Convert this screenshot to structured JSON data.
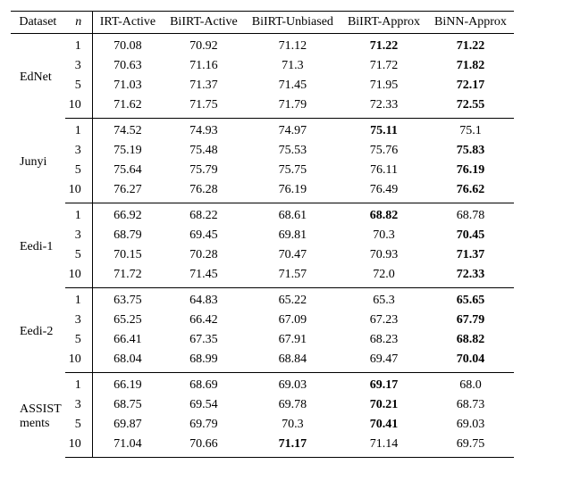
{
  "table": {
    "header": {
      "dataset": "Dataset",
      "n": "n",
      "cols": [
        "IRT-Active",
        "BiIRT-Active",
        "BiIRT-Unbiased",
        "BiIRT-Approx",
        "BiNN-Approx"
      ]
    },
    "groups": [
      {
        "dataset": "EdNet",
        "rows": [
          {
            "n": "1",
            "vals": [
              {
                "v": "70.08",
                "b": false
              },
              {
                "v": "70.92",
                "b": false
              },
              {
                "v": "71.12",
                "b": false
              },
              {
                "v": "71.22",
                "b": true
              },
              {
                "v": "71.22",
                "b": true
              }
            ]
          },
          {
            "n": "3",
            "vals": [
              {
                "v": "70.63",
                "b": false
              },
              {
                "v": "71.16",
                "b": false
              },
              {
                "v": "71.3",
                "b": false
              },
              {
                "v": "71.72",
                "b": false
              },
              {
                "v": "71.82",
                "b": true
              }
            ]
          },
          {
            "n": "5",
            "vals": [
              {
                "v": "71.03",
                "b": false
              },
              {
                "v": "71.37",
                "b": false
              },
              {
                "v": "71.45",
                "b": false
              },
              {
                "v": "71.95",
                "b": false
              },
              {
                "v": "72.17",
                "b": true
              }
            ]
          },
          {
            "n": "10",
            "vals": [
              {
                "v": "71.62",
                "b": false
              },
              {
                "v": "71.75",
                "b": false
              },
              {
                "v": "71.79",
                "b": false
              },
              {
                "v": "72.33",
                "b": false
              },
              {
                "v": "72.55",
                "b": true
              }
            ]
          }
        ]
      },
      {
        "dataset": "Junyi",
        "rows": [
          {
            "n": "1",
            "vals": [
              {
                "v": "74.52",
                "b": false
              },
              {
                "v": "74.93",
                "b": false
              },
              {
                "v": "74.97",
                "b": false
              },
              {
                "v": "75.11",
                "b": true
              },
              {
                "v": "75.1",
                "b": false
              }
            ]
          },
          {
            "n": "3",
            "vals": [
              {
                "v": "75.19",
                "b": false
              },
              {
                "v": "75.48",
                "b": false
              },
              {
                "v": "75.53",
                "b": false
              },
              {
                "v": "75.76",
                "b": false
              },
              {
                "v": "75.83",
                "b": true
              }
            ]
          },
          {
            "n": "5",
            "vals": [
              {
                "v": "75.64",
                "b": false
              },
              {
                "v": "75.79",
                "b": false
              },
              {
                "v": "75.75",
                "b": false
              },
              {
                "v": "76.11",
                "b": false
              },
              {
                "v": "76.19",
                "b": true
              }
            ]
          },
          {
            "n": "10",
            "vals": [
              {
                "v": "76.27",
                "b": false
              },
              {
                "v": "76.28",
                "b": false
              },
              {
                "v": "76.19",
                "b": false
              },
              {
                "v": "76.49",
                "b": false
              },
              {
                "v": "76.62",
                "b": true
              }
            ]
          }
        ]
      },
      {
        "dataset": "Eedi-1",
        "rows": [
          {
            "n": "1",
            "vals": [
              {
                "v": "66.92",
                "b": false
              },
              {
                "v": "68.22",
                "b": false
              },
              {
                "v": "68.61",
                "b": false
              },
              {
                "v": "68.82",
                "b": true
              },
              {
                "v": "68.78",
                "b": false
              }
            ]
          },
          {
            "n": "3",
            "vals": [
              {
                "v": "68.79",
                "b": false
              },
              {
                "v": "69.45",
                "b": false
              },
              {
                "v": "69.81",
                "b": false
              },
              {
                "v": "70.3",
                "b": false
              },
              {
                "v": "70.45",
                "b": true
              }
            ]
          },
          {
            "n": "5",
            "vals": [
              {
                "v": "70.15",
                "b": false
              },
              {
                "v": "70.28",
                "b": false
              },
              {
                "v": "70.47",
                "b": false
              },
              {
                "v": "70.93",
                "b": false
              },
              {
                "v": "71.37",
                "b": true
              }
            ]
          },
          {
            "n": "10",
            "vals": [
              {
                "v": "71.72",
                "b": false
              },
              {
                "v": "71.45",
                "b": false
              },
              {
                "v": "71.57",
                "b": false
              },
              {
                "v": "72.0",
                "b": false
              },
              {
                "v": "72.33",
                "b": true
              }
            ]
          }
        ]
      },
      {
        "dataset": "Eedi-2",
        "rows": [
          {
            "n": "1",
            "vals": [
              {
                "v": "63.75",
                "b": false
              },
              {
                "v": "64.83",
                "b": false
              },
              {
                "v": "65.22",
                "b": false
              },
              {
                "v": "65.3",
                "b": false
              },
              {
                "v": "65.65",
                "b": true
              }
            ]
          },
          {
            "n": "3",
            "vals": [
              {
                "v": "65.25",
                "b": false
              },
              {
                "v": "66.42",
                "b": false
              },
              {
                "v": "67.09",
                "b": false
              },
              {
                "v": "67.23",
                "b": false
              },
              {
                "v": "67.79",
                "b": true
              }
            ]
          },
          {
            "n": "5",
            "vals": [
              {
                "v": "66.41",
                "b": false
              },
              {
                "v": "67.35",
                "b": false
              },
              {
                "v": "67.91",
                "b": false
              },
              {
                "v": "68.23",
                "b": false
              },
              {
                "v": "68.82",
                "b": true
              }
            ]
          },
          {
            "n": "10",
            "vals": [
              {
                "v": "68.04",
                "b": false
              },
              {
                "v": "68.99",
                "b": false
              },
              {
                "v": "68.84",
                "b": false
              },
              {
                "v": "69.47",
                "b": false
              },
              {
                "v": "70.04",
                "b": true
              }
            ]
          }
        ]
      },
      {
        "dataset": "ASSIST\nments",
        "rows": [
          {
            "n": "1",
            "vals": [
              {
                "v": "66.19",
                "b": false
              },
              {
                "v": "68.69",
                "b": false
              },
              {
                "v": "69.03",
                "b": false
              },
              {
                "v": "69.17",
                "b": true
              },
              {
                "v": "68.0",
                "b": false
              }
            ]
          },
          {
            "n": "3",
            "vals": [
              {
                "v": "68.75",
                "b": false
              },
              {
                "v": "69.54",
                "b": false
              },
              {
                "v": "69.78",
                "b": false
              },
              {
                "v": "70.21",
                "b": true
              },
              {
                "v": "68.73",
                "b": false
              }
            ]
          },
          {
            "n": "5",
            "vals": [
              {
                "v": "69.87",
                "b": false
              },
              {
                "v": "69.79",
                "b": false
              },
              {
                "v": "70.3",
                "b": false
              },
              {
                "v": "70.41",
                "b": true
              },
              {
                "v": "69.03",
                "b": false
              }
            ]
          },
          {
            "n": "10",
            "vals": [
              {
                "v": "71.04",
                "b": false
              },
              {
                "v": "70.66",
                "b": false
              },
              {
                "v": "71.17",
                "b": true
              },
              {
                "v": "71.14",
                "b": false
              },
              {
                "v": "69.75",
                "b": false
              }
            ]
          }
        ]
      }
    ]
  }
}
